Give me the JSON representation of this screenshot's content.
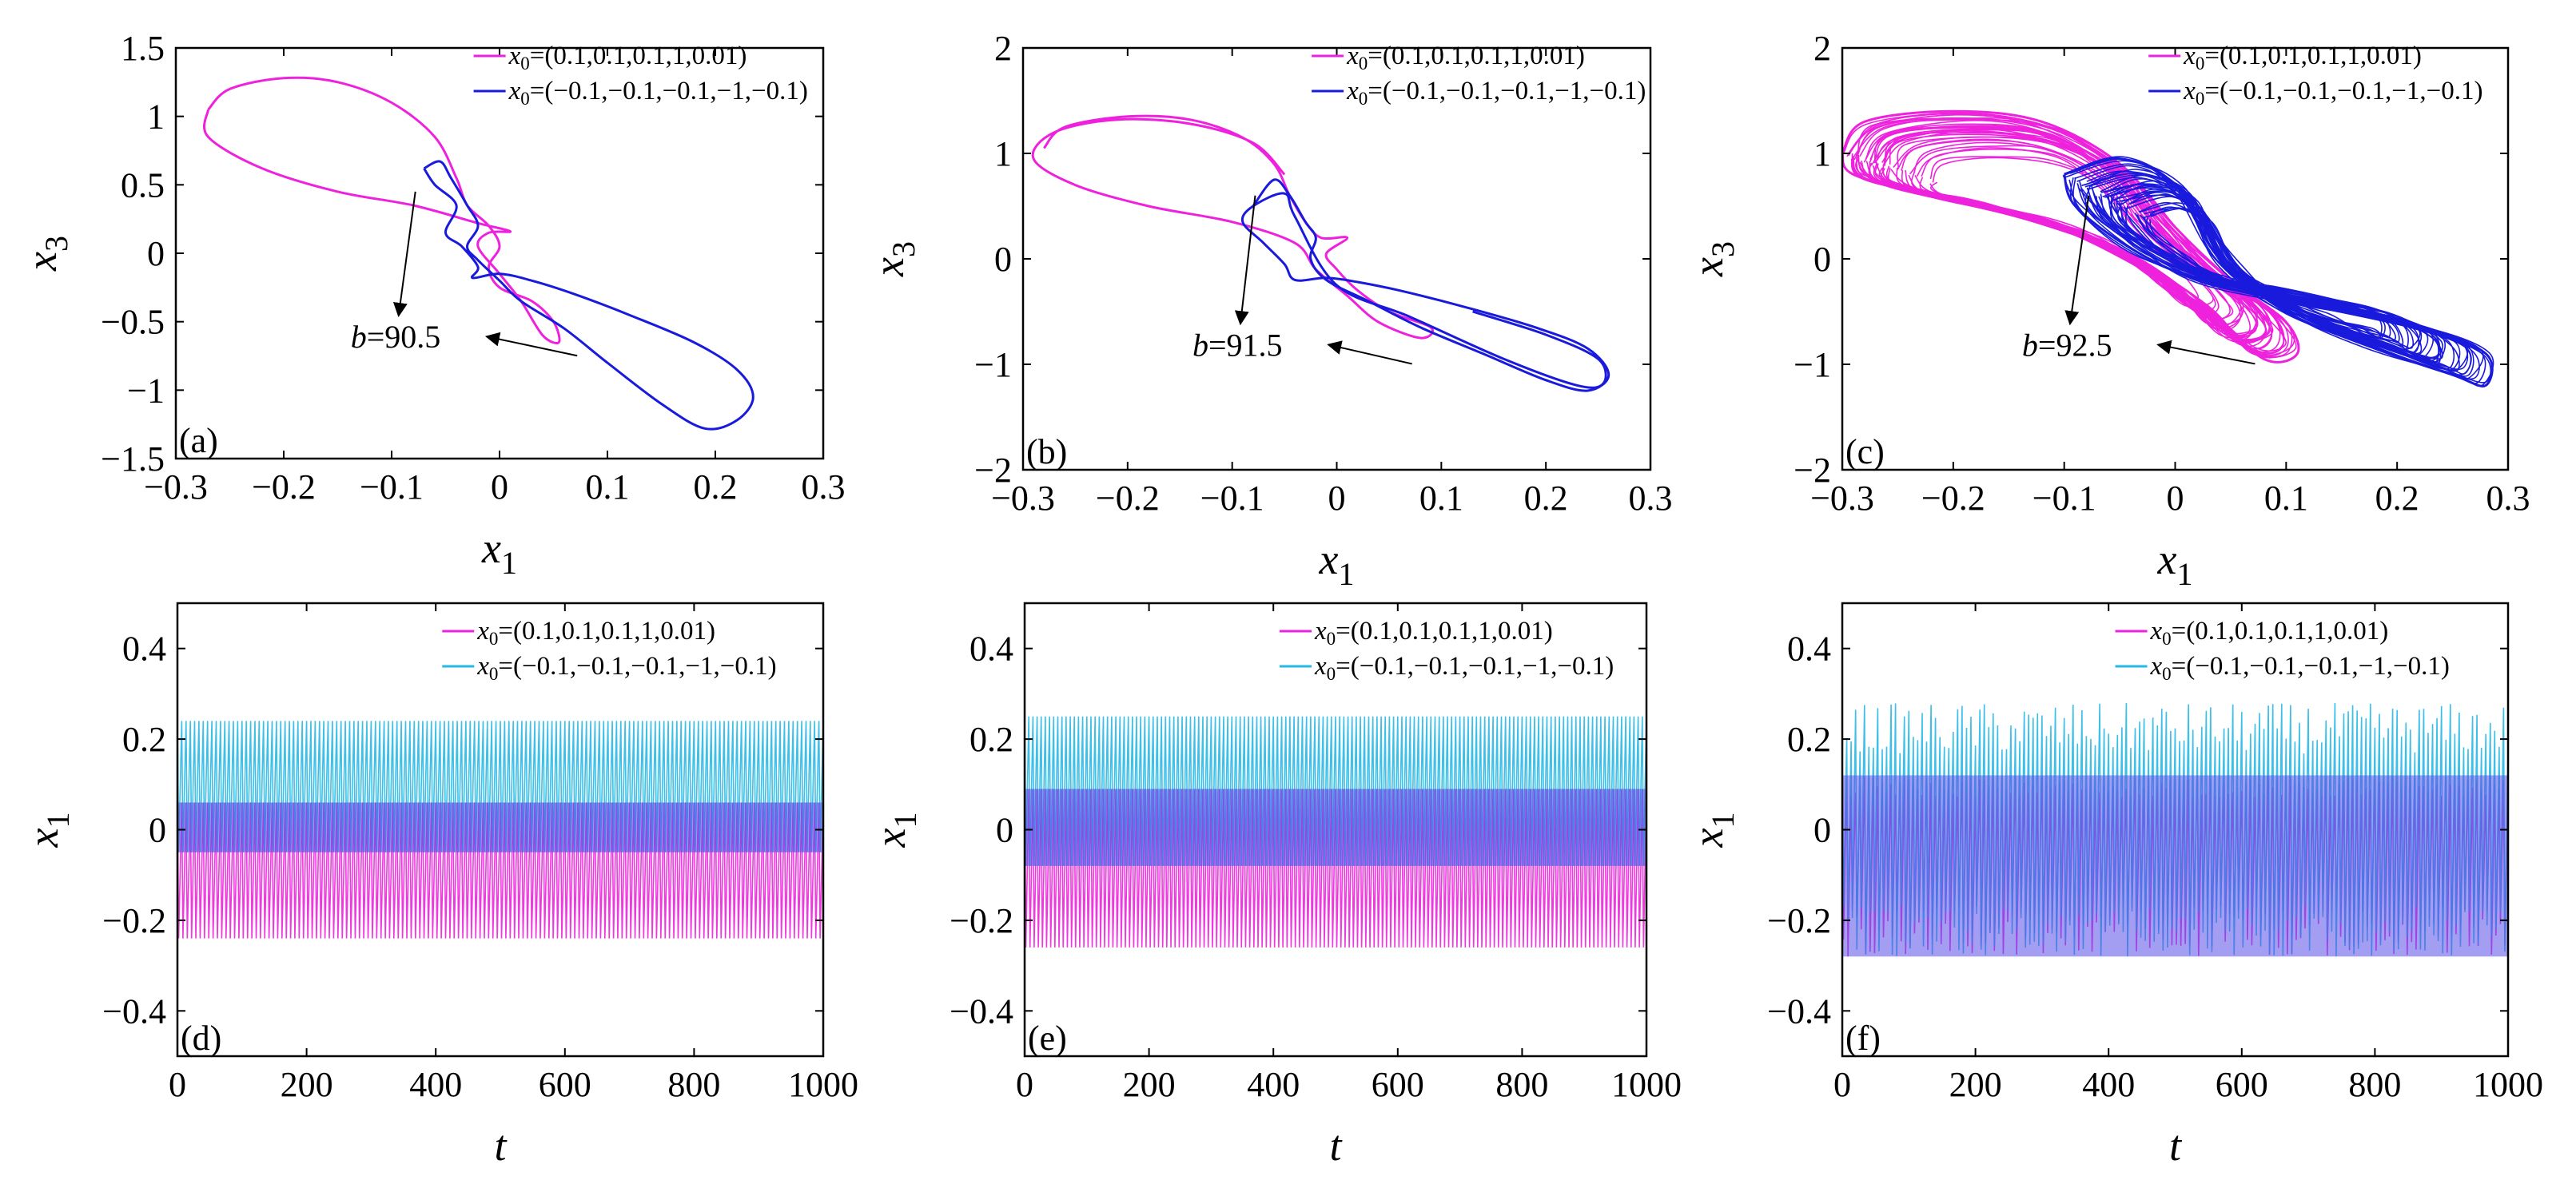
{
  "figure": {
    "colors": {
      "magenta": "#ee22dd",
      "blue": "#1a1adc",
      "cyan": "#27b8e6",
      "axis": "#000000"
    },
    "legend": {
      "x0_prefix": "x",
      "x0_sub": "0",
      "entry1": "=(0.1,0.1,0.1,1,0.01)",
      "entry2": "=(−0.1,−0.1,−0.1,−1,−0.1)"
    },
    "arrow_prefix": "b="
  },
  "chart_data": [
    {
      "panel": "(a)",
      "type": "line",
      "xlabel": "x",
      "xlabel_sub": "1",
      "ylabel": "x",
      "ylabel_sub": "3",
      "xlim": [
        -0.3,
        0.3
      ],
      "ylim": [
        -1.5,
        1.5
      ],
      "xticks": [
        "−0.3",
        "−0.2",
        "−0.1",
        "0",
        "0.1",
        "0.2",
        "0.3"
      ],
      "yticks": [
        "−1.5",
        "−1",
        "−0.5",
        "0",
        "0.5",
        "1",
        "1.5"
      ],
      "xtick_values": [
        -0.3,
        -0.2,
        -0.1,
        0,
        0.1,
        0.2,
        0.3
      ],
      "ytick_values": [
        -1.5,
        -1,
        -0.5,
        0,
        0.5,
        1,
        1.5
      ],
      "annotation": "90.5",
      "b": 90.5,
      "series": [
        {
          "name": "x0=(0.1,0.1,0.1,1,0.01)",
          "color": "magenta",
          "points": [
            [
              -0.27,
              1.05
            ],
            [
              -0.25,
              1.2
            ],
            [
              -0.2,
              1.28
            ],
            [
              -0.15,
              1.25
            ],
            [
              -0.1,
              1.1
            ],
            [
              -0.06,
              0.85
            ],
            [
              -0.04,
              0.55
            ],
            [
              -0.03,
              0.35
            ],
            [
              -0.01,
              0.2
            ],
            [
              0.0,
              0.05
            ],
            [
              -0.01,
              -0.1
            ],
            [
              0.0,
              -0.25
            ],
            [
              0.03,
              -0.35
            ],
            [
              0.05,
              -0.5
            ],
            [
              0.055,
              -0.65
            ],
            [
              0.04,
              -0.6
            ],
            [
              0.02,
              -0.35
            ],
            [
              0.0,
              -0.15
            ],
            [
              -0.02,
              0.05
            ],
            [
              -0.01,
              0.15
            ],
            [
              0.01,
              0.16
            ],
            [
              -0.02,
              0.22
            ],
            [
              -0.08,
              0.35
            ],
            [
              -0.15,
              0.45
            ],
            [
              -0.22,
              0.62
            ],
            [
              -0.27,
              0.85
            ],
            [
              -0.27,
              1.05
            ]
          ]
        },
        {
          "name": "x0=(−0.1,−0.1,−0.1,−1,−0.1)",
          "color": "blue",
          "points": [
            [
              -0.07,
              0.62
            ],
            [
              -0.055,
              0.67
            ],
            [
              -0.045,
              0.55
            ],
            [
              -0.03,
              0.35
            ],
            [
              -0.02,
              0.2
            ],
            [
              -0.03,
              0.05
            ],
            [
              -0.02,
              -0.05
            ],
            [
              0.0,
              -0.2
            ],
            [
              0.02,
              -0.35
            ],
            [
              0.06,
              -0.55
            ],
            [
              0.1,
              -0.8
            ],
            [
              0.15,
              -1.1
            ],
            [
              0.19,
              -1.28
            ],
            [
              0.22,
              -1.22
            ],
            [
              0.235,
              -1.05
            ],
            [
              0.22,
              -0.85
            ],
            [
              0.18,
              -0.65
            ],
            [
              0.12,
              -0.45
            ],
            [
              0.07,
              -0.3
            ],
            [
              0.03,
              -0.2
            ],
            [
              0.0,
              -0.15
            ],
            [
              -0.025,
              -0.18
            ],
            [
              -0.02,
              -0.1
            ],
            [
              -0.035,
              0.05
            ],
            [
              -0.05,
              0.15
            ],
            [
              -0.04,
              0.35
            ],
            [
              -0.06,
              0.5
            ],
            [
              -0.07,
              0.62
            ]
          ]
        }
      ]
    },
    {
      "panel": "(b)",
      "type": "line",
      "xlabel": "x",
      "xlabel_sub": "1",
      "ylabel": "x",
      "ylabel_sub": "3",
      "xlim": [
        -0.3,
        0.3
      ],
      "ylim": [
        -2,
        2
      ],
      "xticks": [
        "−0.3",
        "−0.2",
        "−0.1",
        "0",
        "0.1",
        "0.2",
        "0.3"
      ],
      "yticks": [
        "−2",
        "−1",
        "0",
        "1",
        "2"
      ],
      "xtick_values": [
        -0.3,
        -0.2,
        -0.1,
        0,
        0.1,
        0.2,
        0.3
      ],
      "ytick_values": [
        -2,
        -1,
        0,
        1,
        2
      ],
      "annotation": "91.5",
      "b": 91.5,
      "series": [
        {
          "name": "x0=(0.1,0.1,0.1,1,0.01)",
          "color": "magenta",
          "points": [
            [
              -0.28,
              1.05
            ],
            [
              -0.26,
              1.25
            ],
            [
              -0.2,
              1.35
            ],
            [
              -0.14,
              1.32
            ],
            [
              -0.09,
              1.15
            ],
            [
              -0.06,
              0.9
            ],
            [
              -0.045,
              0.6
            ],
            [
              -0.03,
              0.35
            ],
            [
              -0.015,
              0.2
            ],
            [
              0.01,
              0.2
            ],
            [
              -0.01,
              0.05
            ],
            [
              0.0,
              -0.1
            ],
            [
              0.02,
              -0.3
            ],
            [
              0.05,
              -0.5
            ],
            [
              0.09,
              -0.65
            ],
            [
              0.08,
              -0.75
            ],
            [
              0.04,
              -0.6
            ],
            [
              0.01,
              -0.35
            ],
            [
              -0.02,
              -0.1
            ],
            [
              -0.04,
              0.15
            ],
            [
              -0.1,
              0.35
            ],
            [
              -0.18,
              0.5
            ],
            [
              -0.25,
              0.7
            ],
            [
              -0.29,
              0.95
            ],
            [
              -0.27,
              1.2
            ],
            [
              -0.21,
              1.32
            ],
            [
              -0.14,
              1.28
            ],
            [
              -0.08,
              1.1
            ],
            [
              -0.05,
              0.8
            ]
          ]
        },
        {
          "name": "x0=(−0.1,−0.1,−0.1,−1,−0.1)",
          "color": "blue",
          "points": [
            [
              -0.08,
              0.5
            ],
            [
              -0.06,
              0.75
            ],
            [
              -0.045,
              0.6
            ],
            [
              -0.03,
              0.35
            ],
            [
              -0.02,
              0.2
            ],
            [
              -0.025,
              0.0
            ],
            [
              -0.01,
              -0.2
            ],
            [
              0.03,
              -0.4
            ],
            [
              0.08,
              -0.65
            ],
            [
              0.14,
              -0.9
            ],
            [
              0.2,
              -1.15
            ],
            [
              0.24,
              -1.25
            ],
            [
              0.26,
              -1.1
            ],
            [
              0.24,
              -0.85
            ],
            [
              0.19,
              -0.65
            ],
            [
              0.12,
              -0.45
            ],
            [
              0.06,
              -0.3
            ],
            [
              0.02,
              -0.22
            ],
            [
              -0.01,
              -0.18
            ],
            [
              -0.04,
              -0.2
            ],
            [
              -0.05,
              -0.05
            ],
            [
              -0.07,
              0.15
            ],
            [
              -0.09,
              0.35
            ],
            [
              -0.08,
              0.5
            ],
            [
              -0.05,
              0.62
            ],
            [
              -0.04,
              0.4
            ],
            [
              0.0,
              -0.25
            ],
            [
              0.07,
              -0.55
            ],
            [
              0.16,
              -0.95
            ],
            [
              0.23,
              -1.2
            ],
            [
              0.255,
              -1.18
            ],
            [
              0.25,
              -0.95
            ],
            [
              0.2,
              -0.72
            ],
            [
              0.13,
              -0.5
            ]
          ]
        }
      ]
    },
    {
      "panel": "(c)",
      "type": "line",
      "xlabel": "x",
      "xlabel_sub": "1",
      "ylabel": "x",
      "ylabel_sub": "3",
      "xlim": [
        -0.3,
        0.3
      ],
      "ylim": [
        -2,
        2
      ],
      "xticks": [
        "−0.3",
        "−0.2",
        "−0.1",
        "0",
        "0.1",
        "0.2",
        "0.3"
      ],
      "yticks": [
        "−2",
        "−1",
        "0",
        "1",
        "2"
      ],
      "xtick_values": [
        -0.3,
        -0.2,
        -0.1,
        0,
        0.1,
        0.2,
        0.3
      ],
      "ytick_values": [
        -2,
        -1,
        0,
        1,
        2
      ],
      "annotation": "92.5",
      "b": 92.5,
      "chaotic": true,
      "series": [
        {
          "name": "x0=(0.1,0.1,0.1,1,0.01)",
          "color": "magenta",
          "band_outer": [
            [
              -0.3,
              1.0
            ],
            [
              -0.28,
              1.3
            ],
            [
              -0.2,
              1.4
            ],
            [
              -0.12,
              1.3
            ],
            [
              -0.05,
              0.9
            ],
            [
              0.0,
              0.3
            ],
            [
              0.05,
              -0.2
            ],
            [
              0.1,
              -0.6
            ],
            [
              0.11,
              -0.9
            ],
            [
              0.08,
              -0.95
            ],
            [
              0.03,
              -0.5
            ],
            [
              -0.04,
              0.0
            ],
            [
              -0.12,
              0.35
            ],
            [
              -0.22,
              0.6
            ],
            [
              -0.29,
              0.8
            ],
            [
              -0.3,
              1.0
            ]
          ]
        },
        {
          "name": "x0=(−0.1,−0.1,−0.1,−1,−0.1)",
          "color": "blue",
          "band_outer": [
            [
              -0.1,
              0.8
            ],
            [
              -0.05,
              0.95
            ],
            [
              0.0,
              0.7
            ],
            [
              0.04,
              0.0
            ],
            [
              0.1,
              -0.5
            ],
            [
              0.18,
              -0.85
            ],
            [
              0.25,
              -1.1
            ],
            [
              0.28,
              -1.2
            ],
            [
              0.28,
              -0.9
            ],
            [
              0.22,
              -0.65
            ],
            [
              0.1,
              -0.4
            ],
            [
              0.02,
              -0.2
            ],
            [
              -0.04,
              0.1
            ],
            [
              -0.09,
              0.5
            ],
            [
              -0.1,
              0.8
            ]
          ]
        }
      ]
    },
    {
      "panel": "(d)",
      "type": "line",
      "xlabel": "t",
      "ylabel": "x",
      "ylabel_sub": "1",
      "xlim": [
        0,
        1000
      ],
      "ylim": [
        -0.5,
        0.5
      ],
      "xticks": [
        "0",
        "200",
        "400",
        "600",
        "800",
        "1000"
      ],
      "yticks": [
        "−0.4",
        "−0.2",
        "0",
        "0.2",
        "0.4"
      ],
      "xtick_values": [
        0,
        200,
        400,
        600,
        800,
        1000
      ],
      "ytick_values": [
        -0.4,
        -0.2,
        0,
        0.2,
        0.4
      ],
      "series": [
        {
          "name": "x0=(0.1,0.1,0.1,1,0.01)",
          "color": "magenta",
          "x_range": [
            0,
            1000
          ],
          "min": -0.24,
          "max": 0.06
        },
        {
          "name": "x0=(−0.1,−0.1,−0.1,−1,−0.1)",
          "color": "cyan",
          "x_range": [
            0,
            1000
          ],
          "min": -0.05,
          "max": 0.24
        }
      ]
    },
    {
      "panel": "(e)",
      "type": "line",
      "xlabel": "t",
      "ylabel": "x",
      "ylabel_sub": "1",
      "xlim": [
        0,
        1000
      ],
      "ylim": [
        -0.5,
        0.5
      ],
      "xticks": [
        "0",
        "200",
        "400",
        "600",
        "800",
        "1000"
      ],
      "yticks": [
        "−0.4",
        "−0.2",
        "0",
        "0.2",
        "0.4"
      ],
      "xtick_values": [
        0,
        200,
        400,
        600,
        800,
        1000
      ],
      "ytick_values": [
        -0.4,
        -0.2,
        0,
        0.2,
        0.4
      ],
      "series": [
        {
          "name": "x0=(0.1,0.1,0.1,1,0.01)",
          "color": "magenta",
          "x_range": [
            0,
            1000
          ],
          "min": -0.26,
          "max": 0.09
        },
        {
          "name": "x0=(−0.1,−0.1,−0.1,−1,−0.1)",
          "color": "cyan",
          "x_range": [
            0,
            1000
          ],
          "min": -0.08,
          "max": 0.25
        }
      ]
    },
    {
      "panel": "(f)",
      "type": "line",
      "xlabel": "t",
      "ylabel": "x",
      "ylabel_sub": "1",
      "xlim": [
        0,
        1000
      ],
      "ylim": [
        -0.5,
        0.5
      ],
      "xticks": [
        "0",
        "200",
        "400",
        "600",
        "800",
        "1000"
      ],
      "yticks": [
        "−0.4",
        "−0.2",
        "0",
        "0.2",
        "0.4"
      ],
      "xtick_values": [
        0,
        200,
        400,
        600,
        800,
        1000
      ],
      "ytick_values": [
        -0.4,
        -0.2,
        0,
        0.2,
        0.4
      ],
      "series": [
        {
          "name": "x0=(0.1,0.1,0.1,1,0.01)",
          "color": "magenta",
          "x_range": [
            0,
            1000
          ],
          "min": -0.28,
          "max": 0.12
        },
        {
          "name": "x0=(−0.1,−0.1,−0.1,−1,−0.1)",
          "color": "cyan",
          "x_range": [
            0,
            1000
          ],
          "min": -0.28,
          "max": 0.28
        }
      ]
    }
  ]
}
